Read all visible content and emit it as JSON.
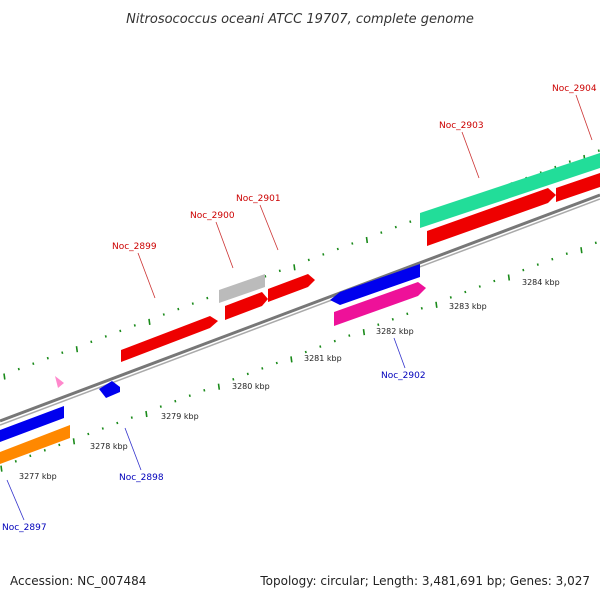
{
  "title": "Nitrosococcus oceani ATCC 19707, complete genome",
  "footer": {
    "accession": "Accession: NC_007484",
    "summary": "Topology: circular; Length: 3,481,691 bp; Genes: 3,027"
  },
  "colors": {
    "backbone": "#888888",
    "tick_dot": "#1a8a1a",
    "forward_label": "#cc0000",
    "reverse_label": "#0000bb"
  },
  "ruler_labels": [
    "3277 kbp",
    "3278 kbp",
    "3279 kbp",
    "3280 kbp",
    "3281 kbp",
    "3282 kbp",
    "3283 kbp",
    "3284 kbp"
  ],
  "gene_labels": [
    {
      "text": "Noc_2897",
      "strand": "reverse"
    },
    {
      "text": "Noc_2898",
      "strand": "reverse"
    },
    {
      "text": "Noc_2899",
      "strand": "forward"
    },
    {
      "text": "Noc_2900",
      "strand": "forward"
    },
    {
      "text": "Noc_2901",
      "strand": "forward"
    },
    {
      "text": "Noc_2902",
      "strand": "reverse"
    },
    {
      "text": "Noc_2903",
      "strand": "forward"
    },
    {
      "text": "Noc_2904",
      "strand": "forward"
    }
  ]
}
